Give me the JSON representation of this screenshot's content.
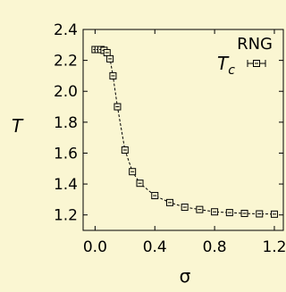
{
  "background_color": "#FAF6D2",
  "chart_data": {
    "type": "scatter",
    "xlabel": "σ",
    "ylabel": "T",
    "xlim": [
      -0.08,
      1.26
    ],
    "ylim": [
      1.1,
      2.4
    ],
    "xticks": [
      "0.0",
      "0.4",
      "0.8",
      "1.2"
    ],
    "xtick_values": [
      0.0,
      0.4,
      0.8,
      1.2
    ],
    "yticks": [
      "1.2",
      "1.4",
      "1.6",
      "1.8",
      "2.0",
      "2.2",
      "2.4"
    ],
    "ytick_values": [
      1.2,
      1.4,
      1.6,
      1.8,
      2.0,
      2.2,
      2.4
    ],
    "grid": false,
    "legend_title": "RNG",
    "legend_position": "top-right",
    "series": [
      {
        "name": "T",
        "name_subscript": "c",
        "marker": "square-with-errorbar",
        "line": "dashed",
        "color": "#000000",
        "x": [
          0.0,
          0.02,
          0.04,
          0.06,
          0.08,
          0.1,
          0.12,
          0.15,
          0.2,
          0.25,
          0.3,
          0.4,
          0.5,
          0.6,
          0.7,
          0.8,
          0.9,
          1.0,
          1.1,
          1.2
        ],
        "y": [
          2.27,
          2.27,
          2.27,
          2.265,
          2.25,
          2.21,
          2.1,
          1.9,
          1.62,
          1.48,
          1.405,
          1.325,
          1.28,
          1.25,
          1.235,
          1.22,
          1.215,
          1.21,
          1.207,
          1.205
        ]
      }
    ]
  }
}
